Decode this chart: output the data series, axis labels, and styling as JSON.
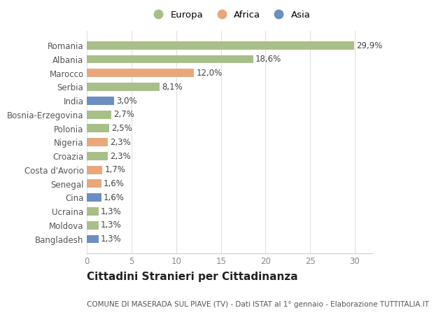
{
  "categories": [
    "Bangladesh",
    "Moldova",
    "Ucraina",
    "Cina",
    "Senegal",
    "Costa d'Avorio",
    "Croazia",
    "Nigeria",
    "Polonia",
    "Bosnia-Erzegovina",
    "India",
    "Serbia",
    "Marocco",
    "Albania",
    "Romania"
  ],
  "values": [
    1.3,
    1.3,
    1.3,
    1.6,
    1.6,
    1.7,
    2.3,
    2.3,
    2.5,
    2.7,
    3.0,
    8.1,
    12.0,
    18.6,
    29.9
  ],
  "continents": [
    "Asia",
    "Europa",
    "Europa",
    "Asia",
    "Africa",
    "Africa",
    "Europa",
    "Africa",
    "Europa",
    "Europa",
    "Asia",
    "Europa",
    "Africa",
    "Europa",
    "Europa"
  ],
  "labels": [
    "1,3%",
    "1,3%",
    "1,3%",
    "1,6%",
    "1,6%",
    "1,7%",
    "2,3%",
    "2,3%",
    "2,5%",
    "2,7%",
    "3,0%",
    "8,1%",
    "12,0%",
    "18,6%",
    "29,9%"
  ],
  "colors": {
    "Europa": "#a8bf8a",
    "Africa": "#e8a87c",
    "Asia": "#6b8fc2"
  },
  "background_color": "#ffffff",
  "plot_background": "#ffffff",
  "title": "Cittadini Stranieri per Cittadinanza",
  "subtitle": "COMUNE DI MASERADA SUL PIAVE (TV) - Dati ISTAT al 1° gennaio - Elaborazione TUTTITALIA.IT",
  "xlim": [
    0,
    32
  ],
  "xticks": [
    0,
    5,
    10,
    15,
    20,
    25,
    30
  ],
  "grid_color": "#e0e0e0",
  "bar_height": 0.6,
  "label_fontsize": 8.5,
  "tick_fontsize": 8.5,
  "title_fontsize": 11,
  "subtitle_fontsize": 7.5,
  "legend_fontsize": 9.5
}
